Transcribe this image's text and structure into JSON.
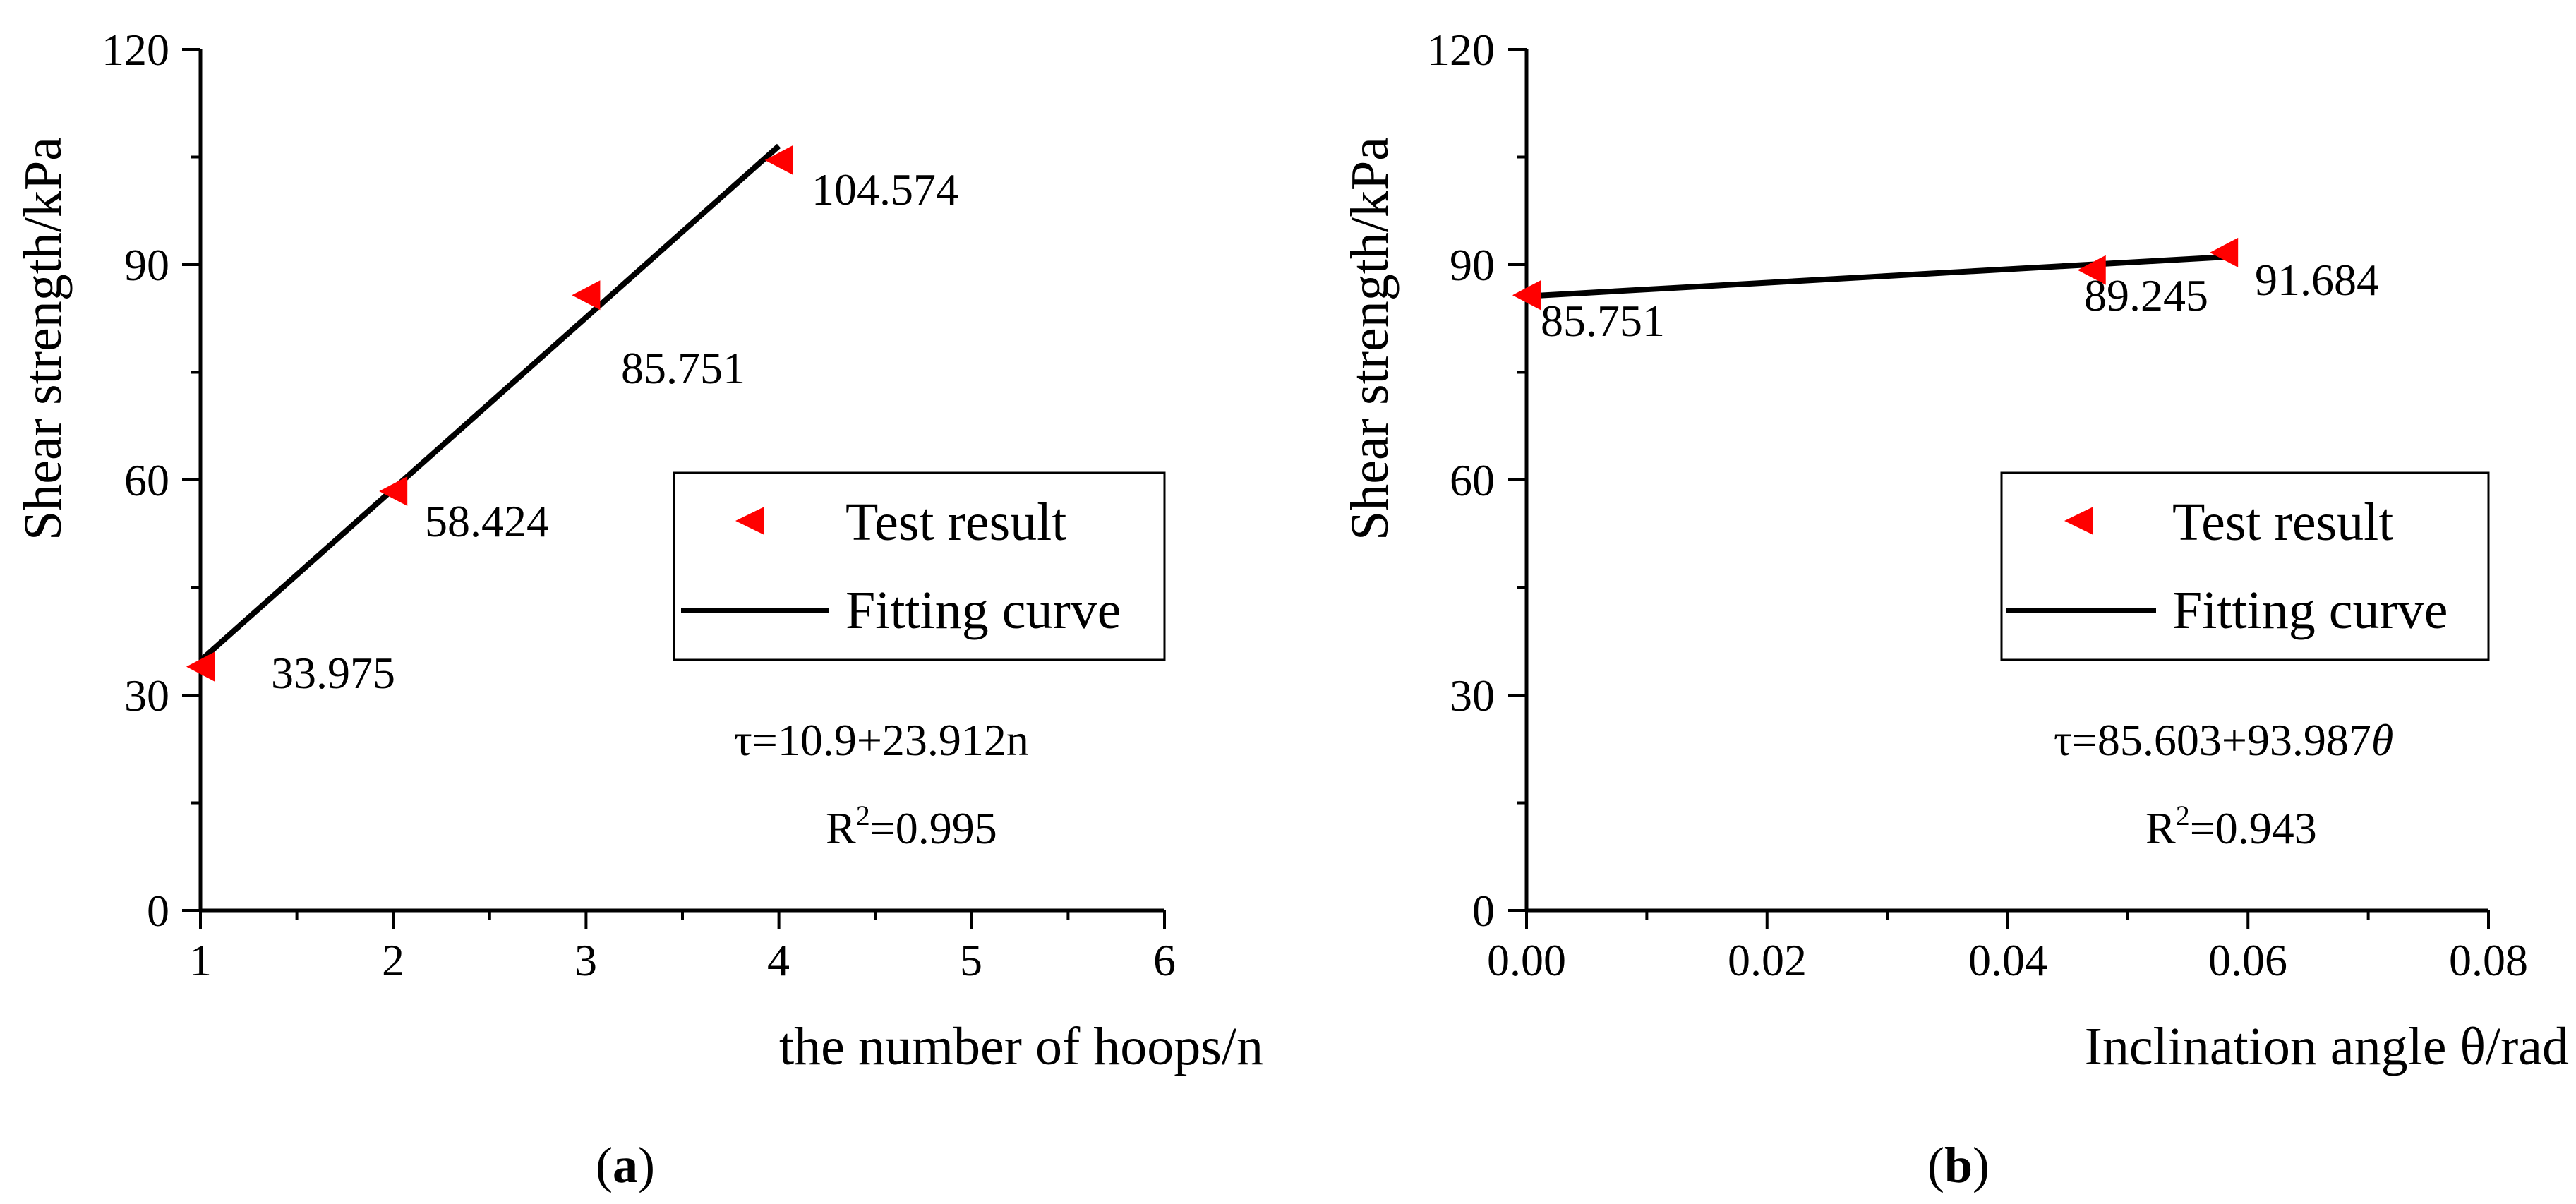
{
  "chart_data": [
    {
      "type": "scatter",
      "id": "a",
      "panel_label": {
        "open": "(",
        "letter": "a",
        "close": ")"
      },
      "xlabel": "the  number of hoops/n",
      "ylabel": "Shear strength/kPa",
      "xlim": [
        1,
        6
      ],
      "ylim": [
        0,
        120
      ],
      "x_ticks": [
        1,
        2,
        3,
        4,
        5,
        6
      ],
      "x_tick_labels": [
        "1",
        "2",
        "3",
        "4",
        "5",
        "6"
      ],
      "y_ticks": [
        0,
        30,
        60,
        90,
        120
      ],
      "y_tick_labels": [
        "0",
        "30",
        "60",
        "90",
        "120"
      ],
      "series": [
        {
          "name": "Test result",
          "marker": "left-triangle",
          "color": "#ff0000",
          "points": [
            {
              "x": 1,
              "y": 33.975,
              "label": "33.975"
            },
            {
              "x": 2,
              "y": 58.424,
              "label": "58.424"
            },
            {
              "x": 3,
              "y": 85.751,
              "label": "85.751"
            },
            {
              "x": 4,
              "y": 104.574,
              "label": "104.574"
            }
          ]
        },
        {
          "name": "Fitting curve",
          "type": "line",
          "color": "#000000",
          "intercept": 10.9,
          "slope": 23.912,
          "x_range": [
            1,
            4
          ]
        }
      ],
      "legend": {
        "position": "center-right",
        "entries": [
          "Test result",
          "Fitting curve"
        ]
      },
      "equation": {
        "prefix": "τ=10.9+23.912n",
        "suffix": ""
      },
      "r2": {
        "base": "R",
        "sup": "2",
        "value": "=0.995"
      }
    },
    {
      "type": "scatter",
      "id": "b",
      "panel_label": {
        "open": "(",
        "letter": "b",
        "close": ")"
      },
      "xlabel": "Inclination angle θ/rad",
      "ylabel": "Shear strength/kPa",
      "xlim": [
        0,
        0.08
      ],
      "ylim": [
        0,
        120
      ],
      "x_ticks": [
        0,
        0.02,
        0.04,
        0.06,
        0.08
      ],
      "x_tick_labels": [
        "0.00",
        "0.02",
        "0.04",
        "0.06",
        "0.08"
      ],
      "y_ticks": [
        0,
        30,
        60,
        90,
        120
      ],
      "y_tick_labels": [
        "0",
        "30",
        "60",
        "90",
        "120"
      ],
      "series": [
        {
          "name": "Test result",
          "marker": "left-triangle",
          "color": "#ff0000",
          "points": [
            {
              "x": 0,
              "y": 85.751,
              "label": "85.751"
            },
            {
              "x": 0.047,
              "y": 89.245,
              "label": "89.245"
            },
            {
              "x": 0.058,
              "y": 91.684,
              "label": "91.684"
            }
          ]
        },
        {
          "name": "Fitting curve",
          "type": "line",
          "color": "#000000",
          "intercept": 85.603,
          "slope": 93.987,
          "x_range": [
            0,
            0.058
          ]
        }
      ],
      "legend": {
        "position": "center-right",
        "entries": [
          "Test result",
          "Fitting curve"
        ]
      },
      "equation": {
        "prefix": "τ=85.603+93.987",
        "suffix": "θ"
      },
      "r2": {
        "base": "R",
        "sup": "2",
        "value": "=0.943"
      }
    }
  ]
}
